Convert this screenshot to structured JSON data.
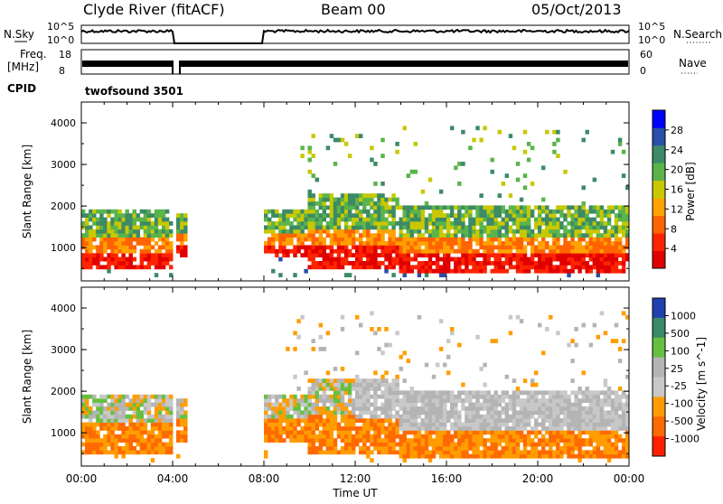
{
  "header": {
    "station": "Clyde River (fitACF)",
    "beam": "Beam 00",
    "date": "05/Oct/2013"
  },
  "top_panels": {
    "nsky_label": "N.Sky",
    "nsearch_label": "N.Search",
    "nsky_ticks": [
      "10^5",
      "10^0"
    ],
    "nsearch_ticks": [
      "10^5",
      "10^0"
    ],
    "freq_label_1": "Freq.",
    "freq_label_2": "[MHz]",
    "freq_ticks": [
      "18",
      "8"
    ],
    "nave_label": "Nave",
    "nave_ticks": [
      "60",
      "0"
    ],
    "cpid_label": "CPID",
    "cpid_value": "twofsound 3501"
  },
  "chart_data": [
    {
      "type": "heatmap",
      "name": "power",
      "xlim": [
        0,
        24
      ],
      "ylim": [
        200,
        4500
      ],
      "ylabel": "Slant Range [km]",
      "yticks": [
        "4000",
        "3000",
        "2000",
        "1000"
      ],
      "colorbar_label": "Power [dB]",
      "colorbar_ticks": [
        "28",
        "24",
        "20",
        "16",
        "12",
        "8",
        "4"
      ],
      "colors": [
        "#0000ff",
        "#2a4faa",
        "#3c8a66",
        "#5ab44a",
        "#c8c800",
        "#ffa200",
        "#ff6400",
        "#ff2400",
        "#e10000"
      ],
      "data_gap": [
        4.0,
        8.0
      ]
    },
    {
      "type": "heatmap",
      "name": "velocity",
      "xlim": [
        0,
        24
      ],
      "ylim": [
        200,
        4500
      ],
      "ylabel": "Slant Range [km]",
      "yticks": [
        "4000",
        "3000",
        "2000",
        "1000"
      ],
      "colorbar_label": "Velocity [m s^-1]",
      "colorbar_ticks": [
        "1000",
        "500",
        "100",
        "25",
        "-25",
        "-100",
        "-500",
        "-1000"
      ],
      "colors": [
        "#2040b0",
        "#3a8a66",
        "#66c040",
        "#b4b4b4",
        "#c8c8c8",
        "#ff9d00",
        "#ff6a00",
        "#ff2000"
      ],
      "data_gap": [
        4.0,
        8.0
      ]
    }
  ],
  "time_axis": {
    "ticks": [
      "00:00",
      "04:00",
      "08:00",
      "12:00",
      "16:00",
      "20:00",
      "00:00"
    ],
    "label": "Time UT"
  }
}
